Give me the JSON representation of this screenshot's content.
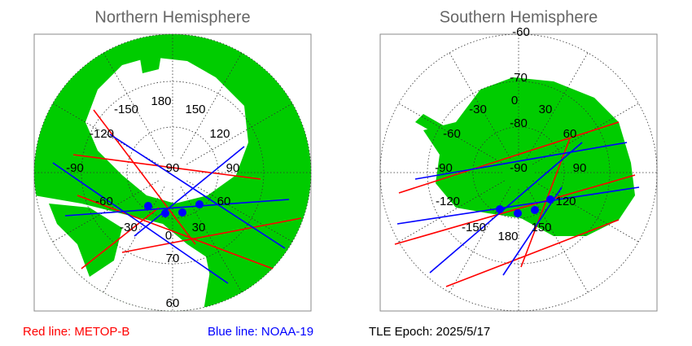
{
  "panels": [
    {
      "title": "Northern Hemisphere",
      "labels": [
        "-150",
        "180",
        "150",
        "-120",
        "120",
        "-90",
        "90",
        "90",
        "-60",
        "60",
        "-30",
        "30",
        "0",
        "70",
        "60"
      ]
    },
    {
      "title": "Southern Hemisphere",
      "labels": [
        "-60",
        "-70",
        "0",
        "-30",
        "30",
        "-80",
        "-60",
        "60",
        "-90",
        "-90",
        "90",
        "-120",
        "120",
        "-150",
        "180",
        "150"
      ]
    }
  ],
  "legend": [
    "Red line: METOP-B",
    "Blue line: NOAA-19"
  ],
  "epoch": "TLE Epoch: 2025/5/17"
}
